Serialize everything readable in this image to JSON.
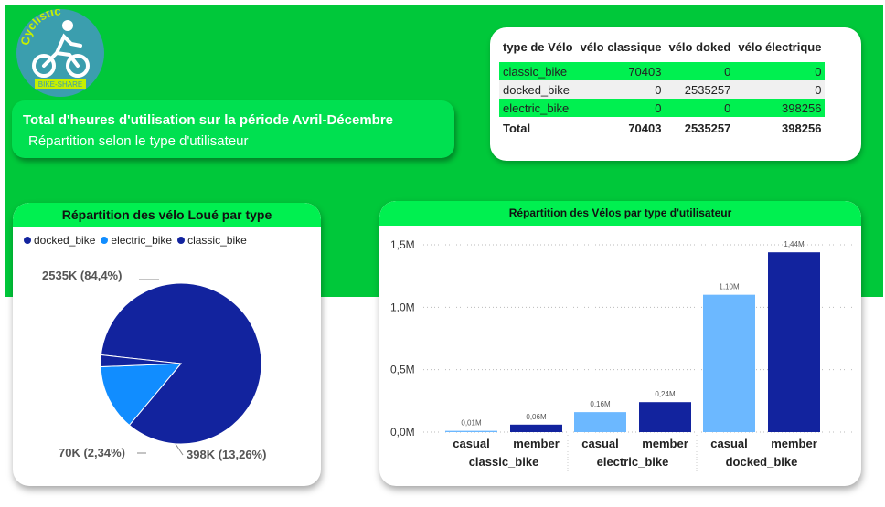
{
  "logo": {
    "brand_text": "Cyclistic",
    "sub_text": "BIKE-SHARE"
  },
  "title_card": {
    "title": "Total d'heures d'utilisation sur la période Avril-Décembre",
    "subtitle": "Répartition selon le type d'utilisateur"
  },
  "matrix": {
    "headers": [
      "type de Vélo",
      "vélo classique",
      "vélo doked",
      "vélo électrique"
    ],
    "rows": [
      {
        "label": "classic_bike",
        "v1": "70403",
        "v2": "0",
        "v3": "0"
      },
      {
        "label": "docked_bike",
        "v1": "0",
        "v2": "2535257",
        "v3": "0"
      },
      {
        "label": "electric_bike",
        "v1": "0",
        "v2": "0",
        "v3": "398256"
      }
    ],
    "total": {
      "label": "Total",
      "v1": "70403",
      "v2": "2535257",
      "v3": "398256"
    }
  },
  "chart_data": [
    {
      "type": "pie",
      "title": "Répartition des vélo Loué par type",
      "legend": [
        "docked_bike",
        "electric_bike",
        "classic_bike"
      ],
      "slices": [
        {
          "name": "docked_bike",
          "value": 2535257,
          "label": "2535K (84,4%)",
          "color": "#12239e"
        },
        {
          "name": "electric_bike",
          "value": 398256,
          "label": "398K (13,26%)",
          "color": "#118dff"
        },
        {
          "name": "classic_bike",
          "value": 70403,
          "label": "70K (2,34%)",
          "color": "#12239e"
        }
      ]
    },
    {
      "type": "bar",
      "title": "Répartition des Vélos par type d'utilisateur",
      "ylim": [
        0,
        1500000
      ],
      "yticks": [
        {
          "value": 0,
          "label": "0,0M"
        },
        {
          "value": 500000,
          "label": "0,5M"
        },
        {
          "value": 1000000,
          "label": "1,0M"
        },
        {
          "value": 1500000,
          "label": "1,5M"
        }
      ],
      "groups": [
        "classic_bike",
        "electric_bike",
        "docked_bike"
      ],
      "bars": [
        {
          "group": "classic_bike",
          "category": "casual",
          "value": 10000,
          "label": "0,01M",
          "color": "#6cb8ff"
        },
        {
          "group": "classic_bike",
          "category": "member",
          "value": 60000,
          "label": "0,06M",
          "color": "#12239e"
        },
        {
          "group": "electric_bike",
          "category": "casual",
          "value": 160000,
          "label": "0,16M",
          "color": "#6cb8ff"
        },
        {
          "group": "electric_bike",
          "category": "member",
          "value": 240000,
          "label": "0,24M",
          "color": "#12239e"
        },
        {
          "group": "docked_bike",
          "category": "casual",
          "value": 1100000,
          "label": "1,10M",
          "color": "#6cb8ff"
        },
        {
          "group": "docked_bike",
          "category": "member",
          "value": 1440000,
          "label": "1,44M",
          "color": "#12239e"
        }
      ]
    }
  ],
  "colors": {
    "background_green": "#00c83a",
    "header_green": "#00f050",
    "dark_blue": "#12239e",
    "light_blue": "#6cb8ff",
    "mid_blue": "#118dff"
  }
}
